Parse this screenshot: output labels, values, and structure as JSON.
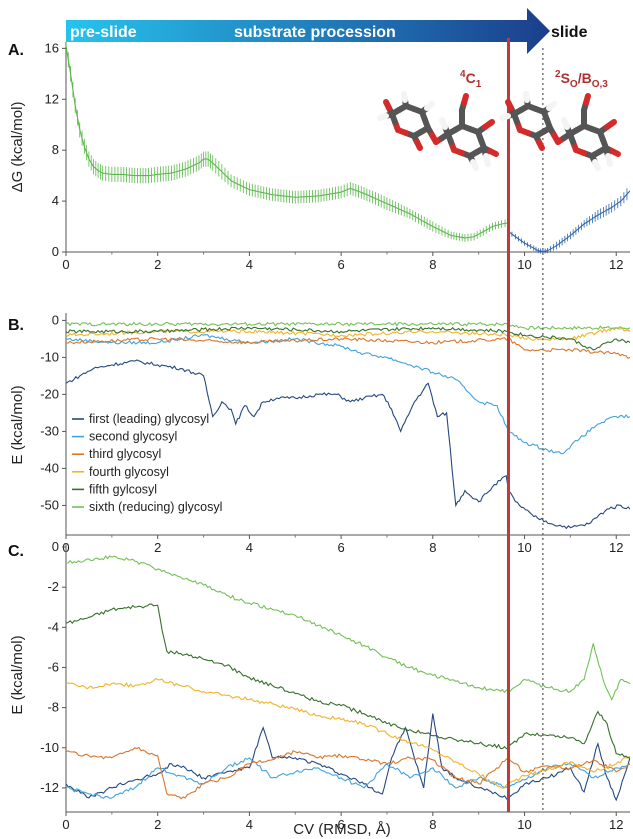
{
  "banner": {
    "left": "pre-slide",
    "middle": "substrate procession",
    "right": "slide"
  },
  "annotations": {
    "c1": {
      "sup": "4",
      "main": "C",
      "sub": "1"
    },
    "so": {
      "sup": "2",
      "main1": "S",
      "sub1": "O",
      "main2": "/B",
      "sub2": "O,3"
    }
  },
  "colors": {
    "green": "#5ab84a",
    "blue": "#2f66b0",
    "first": "#24487f",
    "second": "#3fa3de",
    "third": "#d9762c",
    "fourth": "#f2b22a",
    "fifth": "#36702a",
    "sixth": "#73c156",
    "red_line": "#c0393b",
    "banner_start": "#26c3ee",
    "banner_end": "#1b3e8c"
  },
  "markers": {
    "red_x": 9.65,
    "dashed_x": 10.4
  },
  "chart_data": [
    {
      "type": "line",
      "panel": "A.",
      "xlabel": "",
      "ylabel": "ΔG (kcal/mol)",
      "xlim": [
        0,
        12.3
      ],
      "ylim": [
        0,
        16.5
      ],
      "xticks": [
        0,
        2,
        4,
        6,
        8,
        10,
        12
      ],
      "yticks": [
        0,
        4,
        8,
        12,
        16
      ],
      "error_bars": true,
      "series": [
        {
          "color_key": "green",
          "x": [
            0.0,
            0.1,
            0.2,
            0.3,
            0.4,
            0.5,
            0.6,
            0.7,
            0.8,
            1.0,
            1.2,
            1.5,
            1.8,
            2.0,
            2.3,
            2.6,
            2.9,
            3.0,
            3.1,
            3.2,
            3.4,
            3.6,
            4.0,
            4.5,
            5.0,
            5.5,
            6.0,
            6.2,
            6.5,
            7.0,
            7.5,
            8.0,
            8.4,
            8.7,
            8.9,
            9.1,
            9.3,
            9.5,
            9.65
          ],
          "y": [
            16.2,
            14.0,
            11.5,
            9.6,
            8.3,
            7.3,
            6.7,
            6.4,
            6.2,
            6.1,
            6.1,
            6.0,
            6.0,
            6.1,
            6.2,
            6.5,
            7.0,
            7.3,
            7.3,
            7.0,
            6.3,
            5.6,
            4.9,
            4.5,
            4.3,
            4.4,
            4.7,
            5.0,
            4.6,
            3.8,
            3.0,
            2.0,
            1.3,
            1.1,
            1.2,
            1.6,
            2.0,
            2.2,
            2.3
          ],
          "err": [
            0.6,
            0.6,
            0.6,
            0.6,
            0.6,
            0.6,
            0.6,
            0.6,
            0.6,
            0.6,
            0.6,
            0.6,
            0.6,
            0.6,
            0.6,
            0.6,
            0.6,
            0.6,
            0.6,
            0.6,
            0.6,
            0.5,
            0.5,
            0.5,
            0.5,
            0.5,
            0.5,
            0.5,
            0.5,
            0.5,
            0.4,
            0.4,
            0.3,
            0.3,
            0.3,
            0.3,
            0.3,
            0.3,
            0.3
          ]
        },
        {
          "color_key": "blue",
          "x": [
            9.65,
            9.8,
            10.0,
            10.2,
            10.3,
            10.4,
            10.5,
            10.7,
            11.0,
            11.3,
            11.6,
            11.9,
            12.1,
            12.3
          ],
          "y": [
            1.6,
            1.2,
            0.7,
            0.3,
            0.1,
            0.05,
            0.1,
            0.5,
            1.3,
            2.2,
            2.9,
            3.5,
            4.0,
            4.8
          ],
          "err": [
            0.2,
            0.2,
            0.2,
            0.2,
            0.2,
            0.2,
            0.2,
            0.3,
            0.3,
            0.3,
            0.4,
            0.4,
            0.4,
            0.5
          ]
        }
      ]
    },
    {
      "type": "line",
      "panel": "B.",
      "xlabel": "",
      "ylabel": "E (kcal/mol)",
      "xlim": [
        0,
        12.3
      ],
      "ylim": [
        -58,
        2
      ],
      "xticks": [
        0,
        2,
        4,
        6,
        8,
        10,
        12
      ],
      "yticks": [
        0,
        -10,
        -20,
        -30,
        -40,
        -50
      ],
      "legend_position": "left",
      "series": [
        {
          "name": "first (leading) glycosyl",
          "color_key": "first",
          "x": [
            0,
            0.3,
            0.6,
            1.0,
            1.5,
            2.0,
            2.5,
            3.0,
            3.2,
            3.4,
            3.6,
            3.7,
            3.9,
            4.1,
            4.3,
            4.6,
            5.0,
            5.5,
            5.9,
            6.2,
            6.5,
            6.9,
            7.1,
            7.3,
            7.6,
            7.9,
            8.1,
            8.3,
            8.5,
            8.7,
            9.0,
            9.3,
            9.6,
            9.65,
            9.8,
            10.2,
            10.6,
            11.0,
            11.4,
            11.8,
            12.1,
            12.3
          ],
          "y": [
            -17,
            -15,
            -13,
            -12,
            -11,
            -12,
            -13,
            -15,
            -26,
            -22,
            -24,
            -28,
            -23,
            -26,
            -22,
            -21,
            -21,
            -20,
            -20,
            -22,
            -21,
            -20,
            -24,
            -30,
            -22,
            -17,
            -26,
            -25,
            -50,
            -46,
            -49,
            -45,
            -42,
            -46,
            -49,
            -53,
            -55,
            -56,
            -55,
            -51,
            -50,
            -51
          ]
        },
        {
          "name": "second glycosyl",
          "color_key": "second",
          "x": [
            0,
            1,
            2,
            3,
            3.5,
            4,
            5,
            6,
            6.5,
            7,
            7.5,
            8,
            8.5,
            9,
            9.4,
            9.65,
            10.0,
            10.5,
            10.8,
            11.2,
            11.6,
            12.0,
            12.3
          ],
          "y": [
            -5,
            -6,
            -6,
            -4,
            -5,
            -6,
            -5,
            -7,
            -9,
            -10,
            -12,
            -14,
            -16,
            -22,
            -23,
            -30,
            -33,
            -35,
            -36,
            -32,
            -28,
            -26,
            -26
          ]
        },
        {
          "name": "third glycosyl",
          "color_key": "third",
          "x": [
            0,
            2,
            4,
            6,
            8,
            9.65,
            10.0,
            11,
            12,
            12.3
          ],
          "y": [
            -6,
            -5,
            -6,
            -5,
            -6,
            -5,
            -8,
            -8,
            -9,
            -10
          ]
        },
        {
          "name": "fourth glycosyl",
          "color_key": "fourth",
          "x": [
            0,
            2,
            4,
            6,
            8,
            9.65,
            10.0,
            11,
            12,
            12.3
          ],
          "y": [
            -4,
            -3,
            -3,
            -4,
            -3,
            -4,
            -5,
            -5,
            -2,
            -3
          ]
        },
        {
          "name": "fifth gylcosyl",
          "color_key": "fifth",
          "x": [
            0,
            2,
            4,
            6,
            8,
            9.65,
            10.0,
            11,
            11.5,
            12,
            12.3
          ],
          "y": [
            -3,
            -3,
            -2,
            -3,
            -2,
            -3,
            -4,
            -5,
            -8,
            -5,
            -6
          ]
        },
        {
          "name": "sixth (reducing) glycosyl",
          "color_key": "sixth",
          "x": [
            0,
            2,
            4,
            6,
            8,
            9.65,
            10.0,
            11,
            12,
            12.3
          ],
          "y": [
            -1,
            -1,
            -1,
            -1,
            -1,
            -1,
            -2,
            -2,
            -2,
            -2
          ]
        }
      ]
    },
    {
      "type": "line",
      "panel": "C.",
      "xlabel": "CV (RMSD, Å)",
      "ylabel": "E (kcal/mol)",
      "xlim": [
        0,
        12.3
      ],
      "ylim": [
        -13.2,
        0.2
      ],
      "xticks": [
        0,
        2,
        4,
        6,
        8,
        10,
        12
      ],
      "yticks": [
        0,
        -2,
        -4,
        -6,
        -8,
        -10,
        -12
      ],
      "series": [
        {
          "color_key": "first",
          "x": [
            0,
            0.5,
            1.0,
            1.5,
            2.0,
            2.3,
            2.6,
            3.0,
            3.5,
            4.0,
            4.3,
            4.5,
            5.0,
            5.5,
            6.0,
            6.5,
            6.9,
            7.1,
            7.4,
            7.8,
            8.0,
            8.2,
            8.5,
            9.0,
            9.4,
            9.65,
            10.0,
            10.5,
            11.0,
            11.3,
            11.6,
            11.8,
            12.0,
            12.3
          ],
          "y": [
            -11.8,
            -12.5,
            -12.0,
            -11.6,
            -11.3,
            -10.8,
            -11.0,
            -11.5,
            -11.2,
            -11.0,
            -9.0,
            -10.5,
            -10.5,
            -10.8,
            -11.3,
            -11.8,
            -12.3,
            -10.5,
            -9.0,
            -12.0,
            -8.3,
            -11.0,
            -11.5,
            -12.0,
            -12.3,
            -12.5,
            -11.8,
            -11.5,
            -11.0,
            -12.2,
            -9.8,
            -11.5,
            -12.6,
            -10.5
          ]
        },
        {
          "color_key": "second",
          "x": [
            0,
            0.5,
            1,
            1.5,
            2,
            2.5,
            3,
            3.5,
            4,
            4.5,
            5,
            5.5,
            6,
            6.5,
            7,
            7.5,
            8,
            8.5,
            9,
            9.65,
            10.0,
            10.5,
            11,
            11.5,
            12,
            12.3
          ],
          "y": [
            -12.0,
            -12.3,
            -12.5,
            -12.0,
            -11.0,
            -11.4,
            -11.8,
            -11.0,
            -10.5,
            -11.5,
            -11.2,
            -11.0,
            -11.5,
            -12.0,
            -10.8,
            -11.5,
            -11.0,
            -12.0,
            -11.5,
            -12.0,
            -11.6,
            -11.0,
            -10.8,
            -11.5,
            -11.0,
            -10.8
          ]
        },
        {
          "color_key": "third",
          "x": [
            0,
            0.5,
            1,
            1.5,
            2.0,
            2.2,
            2.6,
            3,
            3.5,
            4,
            4.5,
            5,
            5.5,
            6,
            6.5,
            7,
            7.5,
            8,
            8.5,
            9,
            9.65,
            10.0,
            10.5,
            11,
            11.5,
            12,
            12.3
          ],
          "y": [
            -10.2,
            -10.4,
            -10.5,
            -10.0,
            -10.4,
            -12.3,
            -12.5,
            -11.8,
            -11.5,
            -10.8,
            -10.6,
            -10.2,
            -10.5,
            -10.4,
            -10.6,
            -10.8,
            -10.5,
            -10.6,
            -11.5,
            -11.8,
            -10.5,
            -11.2,
            -10.9,
            -11.0,
            -10.6,
            -11.2,
            -10.8
          ]
        },
        {
          "color_key": "fourth",
          "x": [
            0,
            0.5,
            1,
            1.5,
            2,
            2.5,
            3,
            3.5,
            4,
            4.5,
            5,
            5.5,
            6,
            6.5,
            7,
            7.5,
            8,
            8.5,
            9,
            9.5,
            9.65,
            10.0,
            10.5,
            11,
            11.5,
            12,
            12.3
          ],
          "y": [
            -6.8,
            -7.0,
            -6.8,
            -6.9,
            -6.6,
            -6.9,
            -7.2,
            -7.4,
            -7.6,
            -7.8,
            -8.1,
            -8.4,
            -8.6,
            -8.8,
            -9.3,
            -9.7,
            -10.1,
            -10.7,
            -11.3,
            -12.0,
            -11.8,
            -11.4,
            -11.1,
            -10.7,
            -11.2,
            -10.8,
            -10.4
          ]
        },
        {
          "color_key": "fifth",
          "x": [
            0,
            0.5,
            1,
            1.5,
            2,
            2.1,
            2.2,
            2.5,
            3,
            3.5,
            4,
            4.5,
            5,
            5.5,
            6,
            6.5,
            7,
            7.5,
            8,
            8.5,
            9,
            9.65,
            10.0,
            10.5,
            11,
            11.3,
            11.6,
            11.8,
            12,
            12.3
          ],
          "y": [
            -3.8,
            -3.5,
            -3.1,
            -3.0,
            -2.9,
            -4.2,
            -5.2,
            -5.3,
            -5.6,
            -5.9,
            -6.5,
            -6.9,
            -7.3,
            -7.7,
            -7.9,
            -8.3,
            -8.8,
            -9.1,
            -9.4,
            -9.6,
            -9.8,
            -10.0,
            -9.3,
            -9.4,
            -9.5,
            -9.8,
            -8.2,
            -8.8,
            -10.3,
            -10.5
          ]
        },
        {
          "color_key": "sixth",
          "x": [
            0,
            0.5,
            1,
            1.5,
            2,
            2.5,
            3,
            3.5,
            4,
            4.5,
            5,
            5.5,
            6,
            6.5,
            7,
            7.5,
            8,
            8.5,
            9,
            9.65,
            10.0,
            10.5,
            11,
            11.3,
            11.5,
            11.7,
            11.9,
            12.1,
            12.3
          ],
          "y": [
            -0.8,
            -0.6,
            -0.5,
            -0.7,
            -1.1,
            -1.5,
            -1.9,
            -2.4,
            -2.8,
            -3.1,
            -3.4,
            -3.9,
            -4.4,
            -4.9,
            -5.5,
            -6.0,
            -6.4,
            -6.7,
            -7.0,
            -7.2,
            -6.6,
            -7.0,
            -7.2,
            -6.6,
            -4.8,
            -6.5,
            -7.6,
            -6.6,
            -6.8
          ]
        }
      ]
    }
  ]
}
